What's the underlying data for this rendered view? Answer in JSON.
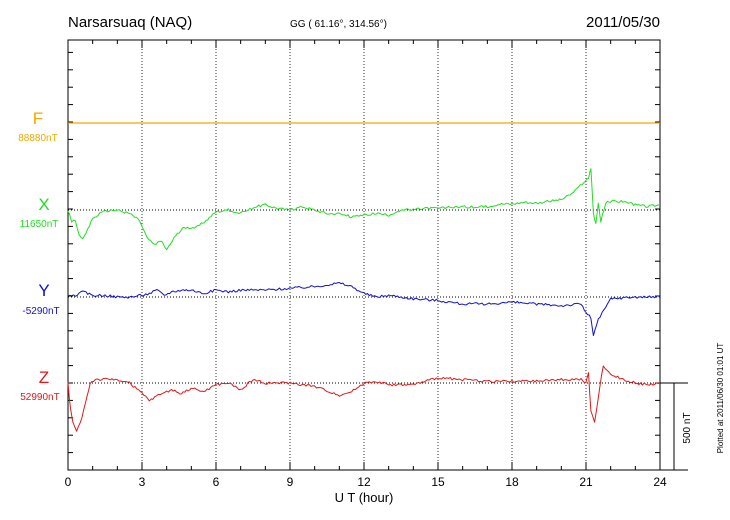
{
  "header": {
    "station": "Narsarsuaq (NAQ)",
    "coordinates": "GG ( 61.16°, 314.56°)",
    "date": "2011/05/30"
  },
  "footer": {
    "plotted_note": "Plotted at 2011/06/30 01:01  UT"
  },
  "colors": {
    "F": "#f0a800",
    "X": "#22dd22",
    "Y": "#1010d0",
    "Z": "#e01818",
    "axis": "#000000"
  },
  "chart_data": {
    "type": "line",
    "xlabel": "U T (hour)",
    "xlim": [
      0,
      24
    ],
    "xticks": [
      0,
      3,
      6,
      9,
      12,
      15,
      18,
      21,
      24
    ],
    "grid": "dotted vertical lines every 3 hours",
    "scale_bar": {
      "label": "500 nT",
      "value_nT": 500
    },
    "series": [
      {
        "name": "F",
        "base_label": "88880nT",
        "x": [
          0,
          24
        ],
        "offset_nT": [
          0,
          0
        ]
      },
      {
        "name": "X",
        "base_label": "11650nT",
        "x": [
          0,
          0.15,
          0.3,
          0.45,
          0.6,
          0.8,
          1.0,
          1.3,
          1.6,
          2.0,
          2.5,
          2.9,
          3.2,
          3.5,
          3.8,
          4.0,
          4.3,
          4.7,
          5.2,
          5.6,
          6.0,
          6.5,
          7.0,
          7.6,
          8.0,
          8.5,
          9.0,
          9.5,
          10.0,
          10.5,
          11.0,
          11.5,
          12.0,
          12.5,
          13.0,
          13.5,
          14.0,
          14.5,
          15.0,
          15.5,
          16.0,
          16.5,
          17.0,
          17.5,
          18.0,
          18.5,
          19.0,
          19.5,
          20.0,
          20.5,
          20.9,
          21.1,
          21.2,
          21.3,
          21.4,
          21.5,
          21.6,
          21.8,
          22.0,
          22.5,
          23.0,
          23.5,
          24.0
        ],
        "offset_nT": [
          0,
          -70,
          -60,
          -140,
          -170,
          -110,
          -50,
          -20,
          -5,
          0,
          -20,
          -60,
          -160,
          -200,
          -180,
          -230,
          -160,
          -100,
          -100,
          -60,
          -10,
          0,
          -20,
          20,
          30,
          10,
          0,
          20,
          0,
          -20,
          -20,
          -40,
          -30,
          -20,
          -30,
          0,
          0,
          10,
          10,
          15,
          20,
          15,
          20,
          35,
          35,
          45,
          40,
          50,
          60,
          100,
          160,
          180,
          240,
          -20,
          -80,
          40,
          -70,
          40,
          50,
          50,
          30,
          20,
          30
        ]
      },
      {
        "name": "Y",
        "base_label": "-5290nT",
        "x": [
          0,
          0.3,
          0.6,
          1.0,
          1.5,
          2.0,
          2.5,
          3.0,
          3.3,
          3.6,
          3.9,
          4.2,
          4.6,
          5.0,
          5.5,
          6.0,
          6.5,
          7.0,
          8.0,
          9.0,
          10.0,
          10.5,
          11.0,
          11.5,
          12.0,
          12.5,
          13.0,
          14.0,
          15.0,
          16.0,
          17.0,
          18.0,
          19.0,
          20.0,
          20.8,
          21.0,
          21.2,
          21.3,
          21.5,
          21.8,
          22.0,
          23.0,
          24.0
        ],
        "offset_nT": [
          0,
          10,
          30,
          10,
          10,
          0,
          0,
          10,
          20,
          40,
          10,
          30,
          40,
          40,
          20,
          40,
          30,
          40,
          40,
          50,
          60,
          70,
          80,
          60,
          20,
          0,
          10,
          -10,
          -20,
          -40,
          -40,
          -30,
          -40,
          -50,
          -40,
          -90,
          -120,
          -220,
          -130,
          -60,
          -10,
          0,
          0
        ]
      },
      {
        "name": "Z",
        "base_label": "52990nT",
        "x": [
          0,
          0.1,
          0.2,
          0.35,
          0.5,
          0.7,
          0.9,
          1.1,
          1.5,
          2.0,
          2.5,
          3.0,
          3.3,
          3.8,
          4.2,
          4.6,
          5.0,
          5.5,
          6.0,
          6.5,
          7.0,
          7.5,
          8.0,
          9.0,
          10.0,
          11.0,
          11.5,
          12.0,
          12.5,
          13.0,
          14.0,
          15.0,
          16.0,
          17.0,
          18.0,
          19.0,
          20.0,
          20.8,
          21.0,
          21.1,
          21.2,
          21.35,
          21.5,
          21.7,
          22.0,
          22.5,
          23.0,
          23.5,
          24.0
        ],
        "offset_nT": [
          0,
          -150,
          -230,
          -270,
          -230,
          -120,
          0,
          20,
          20,
          20,
          0,
          -60,
          -100,
          -60,
          -40,
          -60,
          -30,
          -50,
          -10,
          0,
          -40,
          20,
          0,
          0,
          -20,
          -70,
          -50,
          0,
          10,
          -10,
          -10,
          30,
          20,
          10,
          10,
          10,
          20,
          20,
          0,
          60,
          -160,
          -230,
          -80,
          100,
          50,
          20,
          0,
          -10,
          0
        ]
      }
    ]
  }
}
